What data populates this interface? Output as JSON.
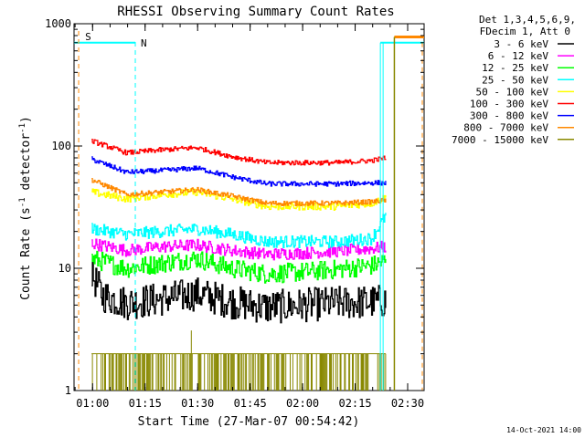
{
  "chart_data": {
    "type": "line",
    "title": "RHESSI Observing Summary Count Rates",
    "xlabel": "Start Time (27-Mar-07 00:54:42)",
    "ylabel_main": "Count Rate (s",
    "ylabel_sup1": "-1",
    "ylabel_mid": " detector",
    "ylabel_sup2": "-1",
    "ylabel_end": ")",
    "yscale": "log",
    "ylim": [
      1,
      1000
    ],
    "xlim_minutes": [
      0,
      100
    ],
    "y_ticks": [
      {
        "value": 1000,
        "label": "1000"
      },
      {
        "value": 100,
        "label": "100"
      },
      {
        "value": 10,
        "label": "10"
      },
      {
        "value": 1,
        "label": "1"
      }
    ],
    "x_ticks": [
      {
        "minute": 5.3,
        "label": "01:00"
      },
      {
        "minute": 20.3,
        "label": "01:15"
      },
      {
        "minute": 35.3,
        "label": "01:30"
      },
      {
        "minute": 50.3,
        "label": "01:45"
      },
      {
        "minute": 65.3,
        "label": "02:00"
      },
      {
        "minute": 80.3,
        "label": "02:15"
      },
      {
        "minute": 95.3,
        "label": "02:30"
      }
    ],
    "legend_header": [
      "Det 1,3,4,5,6,9,",
      "FDecim 1, Att 0"
    ],
    "data_start_minute": 5,
    "data_end_minute": 89,
    "series": [
      {
        "name": "3 - 6 keV",
        "color": "#000000",
        "noise": 0.14,
        "knots": [
          [
            5,
            9
          ],
          [
            8,
            6
          ],
          [
            15,
            5.2
          ],
          [
            25,
            5.6
          ],
          [
            35,
            6.2
          ],
          [
            45,
            5.3
          ],
          [
            55,
            4.8
          ],
          [
            65,
            5
          ],
          [
            75,
            5.2
          ],
          [
            85,
            5.3
          ],
          [
            89,
            5.4
          ]
        ]
      },
      {
        "name": "6 - 12 keV",
        "color": "#ff00ff",
        "noise": 0.05,
        "knots": [
          [
            5,
            16
          ],
          [
            15,
            14
          ],
          [
            25,
            15
          ],
          [
            35,
            15.5
          ],
          [
            45,
            14
          ],
          [
            55,
            13
          ],
          [
            65,
            13.3
          ],
          [
            75,
            13.8
          ],
          [
            85,
            14.5
          ],
          [
            89,
            15
          ]
        ]
      },
      {
        "name": "12 - 25 keV",
        "color": "#00ff00",
        "noise": 0.08,
        "knots": [
          [
            5,
            12
          ],
          [
            15,
            10
          ],
          [
            25,
            11
          ],
          [
            35,
            12
          ],
          [
            45,
            10
          ],
          [
            55,
            9
          ],
          [
            65,
            9.3
          ],
          [
            75,
            9.8
          ],
          [
            85,
            10.5
          ],
          [
            89,
            11.5
          ]
        ]
      },
      {
        "name": "25 - 50 keV",
        "color": "#00ffff",
        "noise": 0.05,
        "knots": [
          [
            5,
            21
          ],
          [
            15,
            19
          ],
          [
            25,
            20
          ],
          [
            35,
            21
          ],
          [
            45,
            19
          ],
          [
            55,
            16.5
          ],
          [
            65,
            16.5
          ],
          [
            75,
            16.5
          ],
          [
            85,
            17.5
          ],
          [
            89,
            27
          ]
        ]
      },
      {
        "name": "50 - 100 keV",
        "color": "#ffff00",
        "noise": 0.03,
        "knots": [
          [
            5,
            42
          ],
          [
            15,
            37
          ],
          [
            25,
            40
          ],
          [
            35,
            42
          ],
          [
            45,
            37
          ],
          [
            55,
            32
          ],
          [
            65,
            32
          ],
          [
            75,
            32
          ],
          [
            85,
            34
          ],
          [
            89,
            38
          ]
        ]
      },
      {
        "name": "100 - 300 keV",
        "color": "#ff0000",
        "noise": 0.02,
        "knots": [
          [
            5,
            110
          ],
          [
            15,
            88
          ],
          [
            25,
            93
          ],
          [
            35,
            97
          ],
          [
            45,
            82
          ],
          [
            55,
            73
          ],
          [
            65,
            73
          ],
          [
            75,
            73
          ],
          [
            85,
            76
          ],
          [
            89,
            80
          ]
        ]
      },
      {
        "name": "300 - 800 keV",
        "color": "#0000ff",
        "noise": 0.02,
        "knots": [
          [
            5,
            78
          ],
          [
            15,
            61
          ],
          [
            25,
            63
          ],
          [
            35,
            66
          ],
          [
            45,
            56
          ],
          [
            55,
            49
          ],
          [
            65,
            49
          ],
          [
            75,
            49
          ],
          [
            85,
            50
          ],
          [
            89,
            50
          ]
        ]
      },
      {
        "name": "800 - 7000 keV",
        "color": "#ff8800",
        "noise": 0.02,
        "knots": [
          [
            5,
            53
          ],
          [
            15,
            40
          ],
          [
            25,
            42
          ],
          [
            35,
            44
          ],
          [
            45,
            39
          ],
          [
            55,
            34
          ],
          [
            65,
            34
          ],
          [
            75,
            34
          ],
          [
            85,
            35
          ],
          [
            89,
            36
          ]
        ]
      },
      {
        "name": "7000 - 15000 keV",
        "color": "#888800",
        "noise": 0,
        "knots": [
          [
            5,
            2
          ],
          [
            89,
            2
          ]
        ]
      }
    ],
    "annotations": {
      "saa_label": "S",
      "night_label": "N",
      "cyan_level": 700,
      "orange_level": 780,
      "saa_marker_minute": 0.8,
      "night_marker_minute": 17.5,
      "night_end_minute": 87.5,
      "attenuator_minute": 91.5,
      "end_marker_minute": 100
    }
  },
  "timestamp": "14-Oct-2021 14:00"
}
